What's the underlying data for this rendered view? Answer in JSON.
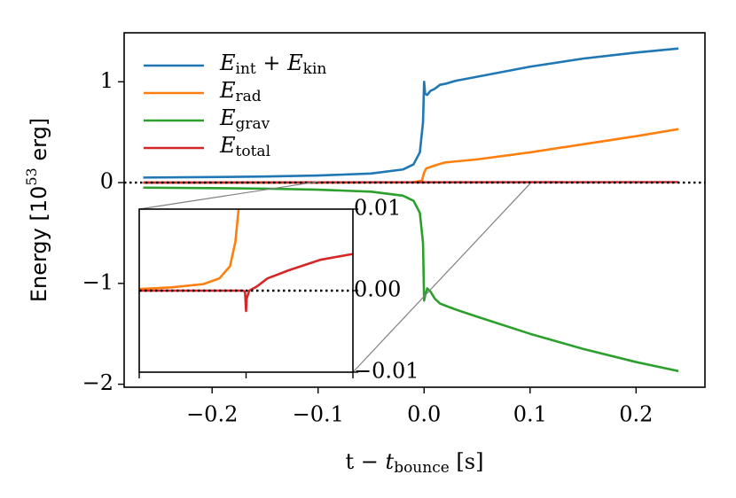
{
  "chart_data": [
    {
      "type": "line",
      "xlabel": "t − tbounce [s]",
      "ylabel": "Energy [1053 erg]",
      "xlim": [
        -0.283,
        0.265
      ],
      "ylim": [
        -2.03,
        1.486
      ],
      "xticks": [
        {
          "value": -0.2,
          "label": "−0.2"
        },
        {
          "value": -0.1,
          "label": "−0.1"
        },
        {
          "value": 0,
          "label": "0.0"
        },
        {
          "value": 0.1,
          "label": "0.1"
        },
        {
          "value": 0.2,
          "label": "0.2"
        }
      ],
      "yticks": [
        {
          "value": -2,
          "label": "−2"
        },
        {
          "value": -1,
          "label": "−1"
        },
        0,
        1
      ],
      "legend": "upper left",
      "hline": 0,
      "series": [
        {
          "name": "Eint + Ekin",
          "color": "#1f77b4",
          "x": [
            -0.265,
            -0.2,
            -0.15,
            -0.1,
            -0.05,
            -0.02,
            -0.01,
            -0.004,
            -0.001,
            0,
            0.001,
            0.003,
            0.006,
            0.01,
            0.015,
            0.02,
            0.03,
            0.05,
            0.1,
            0.15,
            0.2,
            0.24
          ],
          "values": [
            0.05,
            0.055,
            0.06,
            0.07,
            0.09,
            0.13,
            0.18,
            0.3,
            0.6,
            1.0,
            0.88,
            0.87,
            0.91,
            0.93,
            0.97,
            0.98,
            1.01,
            1.05,
            1.15,
            1.23,
            1.29,
            1.33
          ]
        },
        {
          "name": "Erad",
          "color": "#ff7f0e",
          "x": [
            -0.265,
            -0.1,
            -0.01,
            -0.002,
            0,
            0.002,
            0.01,
            0.02,
            0.05,
            0.1,
            0.15,
            0.2,
            0.24
          ],
          "values": [
            0,
            0,
            0.003,
            0.02,
            0.1,
            0.14,
            0.17,
            0.2,
            0.23,
            0.3,
            0.38,
            0.46,
            0.53
          ]
        },
        {
          "name": "Egrav",
          "color": "#2ca02c",
          "x": [
            -0.265,
            -0.2,
            -0.15,
            -0.1,
            -0.05,
            -0.02,
            -0.01,
            -0.004,
            -0.001,
            0,
            0.001,
            0.003,
            0.006,
            0.01,
            0.015,
            0.02,
            0.03,
            0.05,
            0.1,
            0.15,
            0.2,
            0.24
          ],
          "values": [
            -0.05,
            -0.055,
            -0.06,
            -0.07,
            -0.09,
            -0.13,
            -0.18,
            -0.3,
            -0.6,
            -1.17,
            -1.12,
            -1.05,
            -1.08,
            -1.15,
            -1.2,
            -1.22,
            -1.26,
            -1.33,
            -1.5,
            -1.65,
            -1.78,
            -1.87
          ]
        },
        {
          "name": "Etotal",
          "color": "#d62728",
          "x": [
            -0.265,
            0.24
          ],
          "values": [
            0,
            0.005
          ]
        }
      ]
    },
    {
      "type": "line",
      "xlim": [
        -0.1,
        0.1
      ],
      "ylim": [
        -0.01,
        0.01
      ],
      "xticks": [
        -0.1,
        0,
        0.1
      ],
      "yticks": [
        {
          "value": -0.01,
          "label": "−0.01"
        },
        {
          "value": 0,
          "label": "0.00"
        },
        {
          "value": 0.01,
          "label": "0.01"
        }
      ],
      "hline": 0,
      "series": [
        {
          "color": "#ff7f0e",
          "x": [
            -0.1,
            -0.07,
            -0.04,
            -0.025,
            -0.015,
            -0.01,
            -0.007
          ],
          "values": [
            0.0002,
            0.0004,
            0.0008,
            0.0015,
            0.003,
            0.006,
            0.01
          ]
        },
        {
          "color": "#d62728",
          "x": [
            -0.1,
            -0.003,
            -0.001,
            0,
            0.0005,
            0.003,
            0.01,
            0.015,
            0.02,
            0.04,
            0.07,
            0.1
          ],
          "values": [
            0,
            0,
            -0.0001,
            -0.0025,
            -0.001,
            0,
            0.0005,
            0.001,
            0.0015,
            0.0025,
            0.0038,
            0.0045
          ]
        }
      ]
    }
  ]
}
